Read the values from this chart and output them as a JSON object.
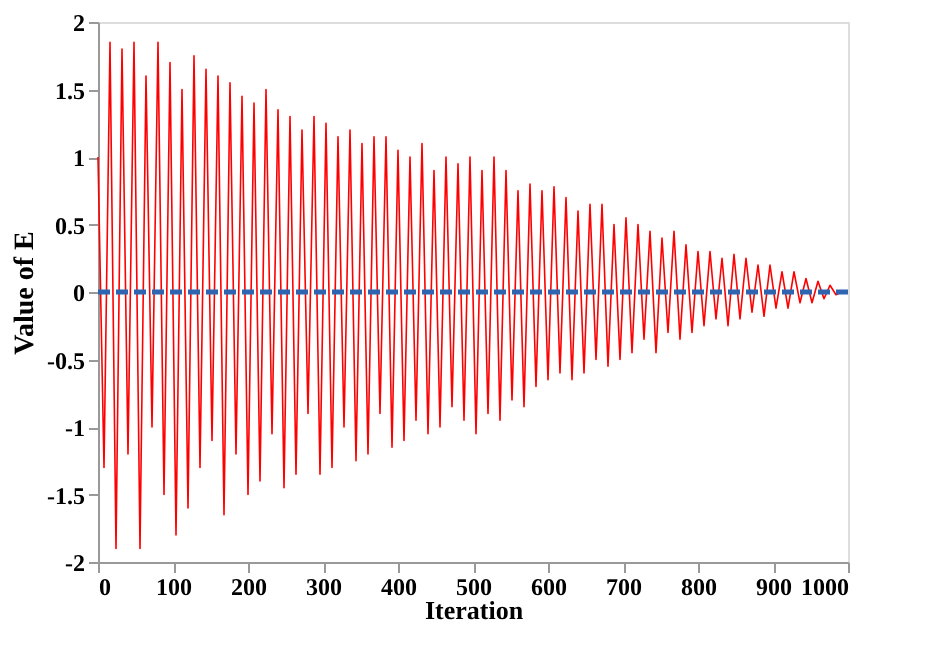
{
  "chart_data": {
    "type": "line",
    "xlabel": "Iteration",
    "ylabel": "Value of E",
    "x": [
      0,
      8,
      16,
      24,
      32,
      40,
      48,
      56,
      64,
      72,
      80,
      88,
      96,
      104,
      112,
      120,
      128,
      136,
      144,
      152,
      160,
      168,
      176,
      184,
      192,
      200,
      208,
      216,
      224,
      232,
      240,
      248,
      256,
      264,
      272,
      280,
      288,
      296,
      304,
      312,
      320,
      328,
      336,
      344,
      352,
      360,
      368,
      376,
      384,
      392,
      400,
      408,
      416,
      424,
      432,
      440,
      448,
      456,
      464,
      472,
      480,
      488,
      496,
      504,
      512,
      520,
      528,
      536,
      544,
      552,
      560,
      568,
      576,
      584,
      592,
      600,
      608,
      616,
      624,
      632,
      640,
      648,
      656,
      664,
      672,
      680,
      688,
      696,
      704,
      712,
      720,
      728,
      736,
      744,
      752,
      760,
      768,
      776,
      784,
      792,
      800,
      808,
      816,
      824,
      832,
      840,
      848,
      856,
      864,
      872,
      880,
      888,
      896,
      904,
      912,
      920,
      928,
      936,
      944,
      952,
      960,
      968,
      976,
      984,
      992
    ],
    "series": [
      {
        "color": "#ff0000",
        "values": [
          1.0,
          -1.3,
          1.85,
          -1.9,
          1.8,
          -1.2,
          1.85,
          -1.9,
          1.6,
          -1.0,
          1.85,
          -1.5,
          1.7,
          -1.8,
          1.5,
          -1.6,
          1.75,
          -1.3,
          1.65,
          -1.1,
          1.6,
          -1.65,
          1.55,
          -1.2,
          1.45,
          -1.5,
          1.4,
          -1.4,
          1.5,
          -1.05,
          1.35,
          -1.45,
          1.3,
          -1.35,
          1.2,
          -0.9,
          1.3,
          -1.35,
          1.25,
          -1.3,
          1.15,
          -1.0,
          1.2,
          -1.25,
          1.1,
          -1.2,
          1.15,
          -0.9,
          1.15,
          -1.15,
          1.05,
          -1.1,
          1.0,
          -0.95,
          1.1,
          -1.05,
          0.9,
          -1.0,
          1.0,
          -0.85,
          0.95,
          -0.95,
          1.0,
          -1.05,
          0.9,
          -0.9,
          1.0,
          -0.95,
          0.9,
          -0.8,
          0.75,
          -0.85,
          0.8,
          -0.7,
          0.75,
          -0.65,
          0.78,
          -0.6,
          0.7,
          -0.65,
          0.6,
          -0.6,
          0.65,
          -0.5,
          0.65,
          -0.55,
          0.5,
          -0.5,
          0.55,
          -0.45,
          0.5,
          -0.35,
          0.45,
          -0.45,
          0.4,
          -0.3,
          0.45,
          -0.35,
          0.35,
          -0.3,
          0.3,
          -0.25,
          0.3,
          -0.2,
          0.25,
          -0.25,
          0.28,
          -0.2,
          0.25,
          -0.15,
          0.2,
          -0.18,
          0.2,
          -0.12,
          0.15,
          -0.12,
          0.15,
          -0.08,
          0.1,
          -0.08,
          0.08,
          -0.05,
          0.05,
          -0.02,
          0.0
        ]
      }
    ],
    "ref_lines": [
      {
        "axis": "y",
        "value": 0,
        "color": "#2e64b0",
        "line_style": "dashed"
      }
    ],
    "xlim": [
      0,
      1000
    ],
    "xticks": [
      0,
      100,
      200,
      300,
      400,
      500,
      600,
      700,
      800,
      900,
      1000
    ],
    "ylim": [
      -2,
      2
    ],
    "yticks": [
      -2,
      -1.5,
      -1,
      -0.5,
      0,
      0.5,
      1,
      1.5,
      2
    ],
    "grid": false,
    "line_style": "solid"
  }
}
